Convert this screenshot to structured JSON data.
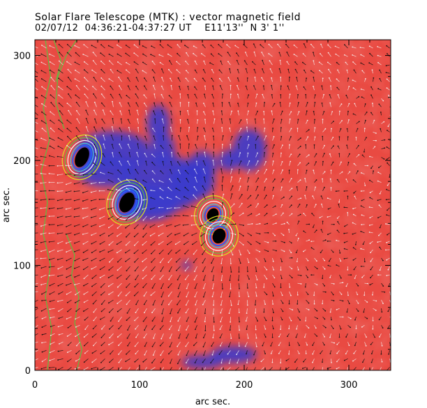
{
  "header": {
    "title": "Solar Flare Telescope (MTK) : vector magnetic field",
    "subtitle": "02/07/12  04:36:21-04:37:27 UT    E11'13''  N 3' 1''"
  },
  "plot": {
    "xlabel": "arc sec.",
    "ylabel": "arc sec.",
    "xlim": [
      0,
      340
    ],
    "ylim": [
      0,
      315
    ],
    "xticks": [
      "0",
      "100",
      "200",
      "300"
    ],
    "yticks": [
      "0",
      "100",
      "200",
      "300"
    ],
    "xtick_values": [
      0,
      100,
      200,
      300
    ],
    "ytick_values": [
      0,
      100,
      200,
      300
    ]
  },
  "colors": {
    "positive_polarity": "#e8403a",
    "negative_polarity": "#3a3acc",
    "umbra": "#000000",
    "contour_yellow": "#d8e020",
    "contour_green": "#5cc040",
    "contour_cyan": "#40c8e0",
    "arrow_dark": "#111111",
    "arrow_light": "#f4f4f4"
  },
  "features": {
    "sunspots": [
      {
        "x": 45,
        "y": 203
      },
      {
        "x": 88,
        "y": 160
      },
      {
        "x": 170,
        "y": 148
      },
      {
        "x": 176,
        "y": 128
      }
    ],
    "negative_regions": [
      {
        "x": 75,
        "y": 200
      },
      {
        "x": 120,
        "y": 178
      },
      {
        "x": 160,
        "y": 180
      },
      {
        "x": 210,
        "y": 205
      },
      {
        "x": 115,
        "y": 235
      },
      {
        "x": 145,
        "y": 100
      },
      {
        "x": 190,
        "y": 18
      }
    ]
  }
}
